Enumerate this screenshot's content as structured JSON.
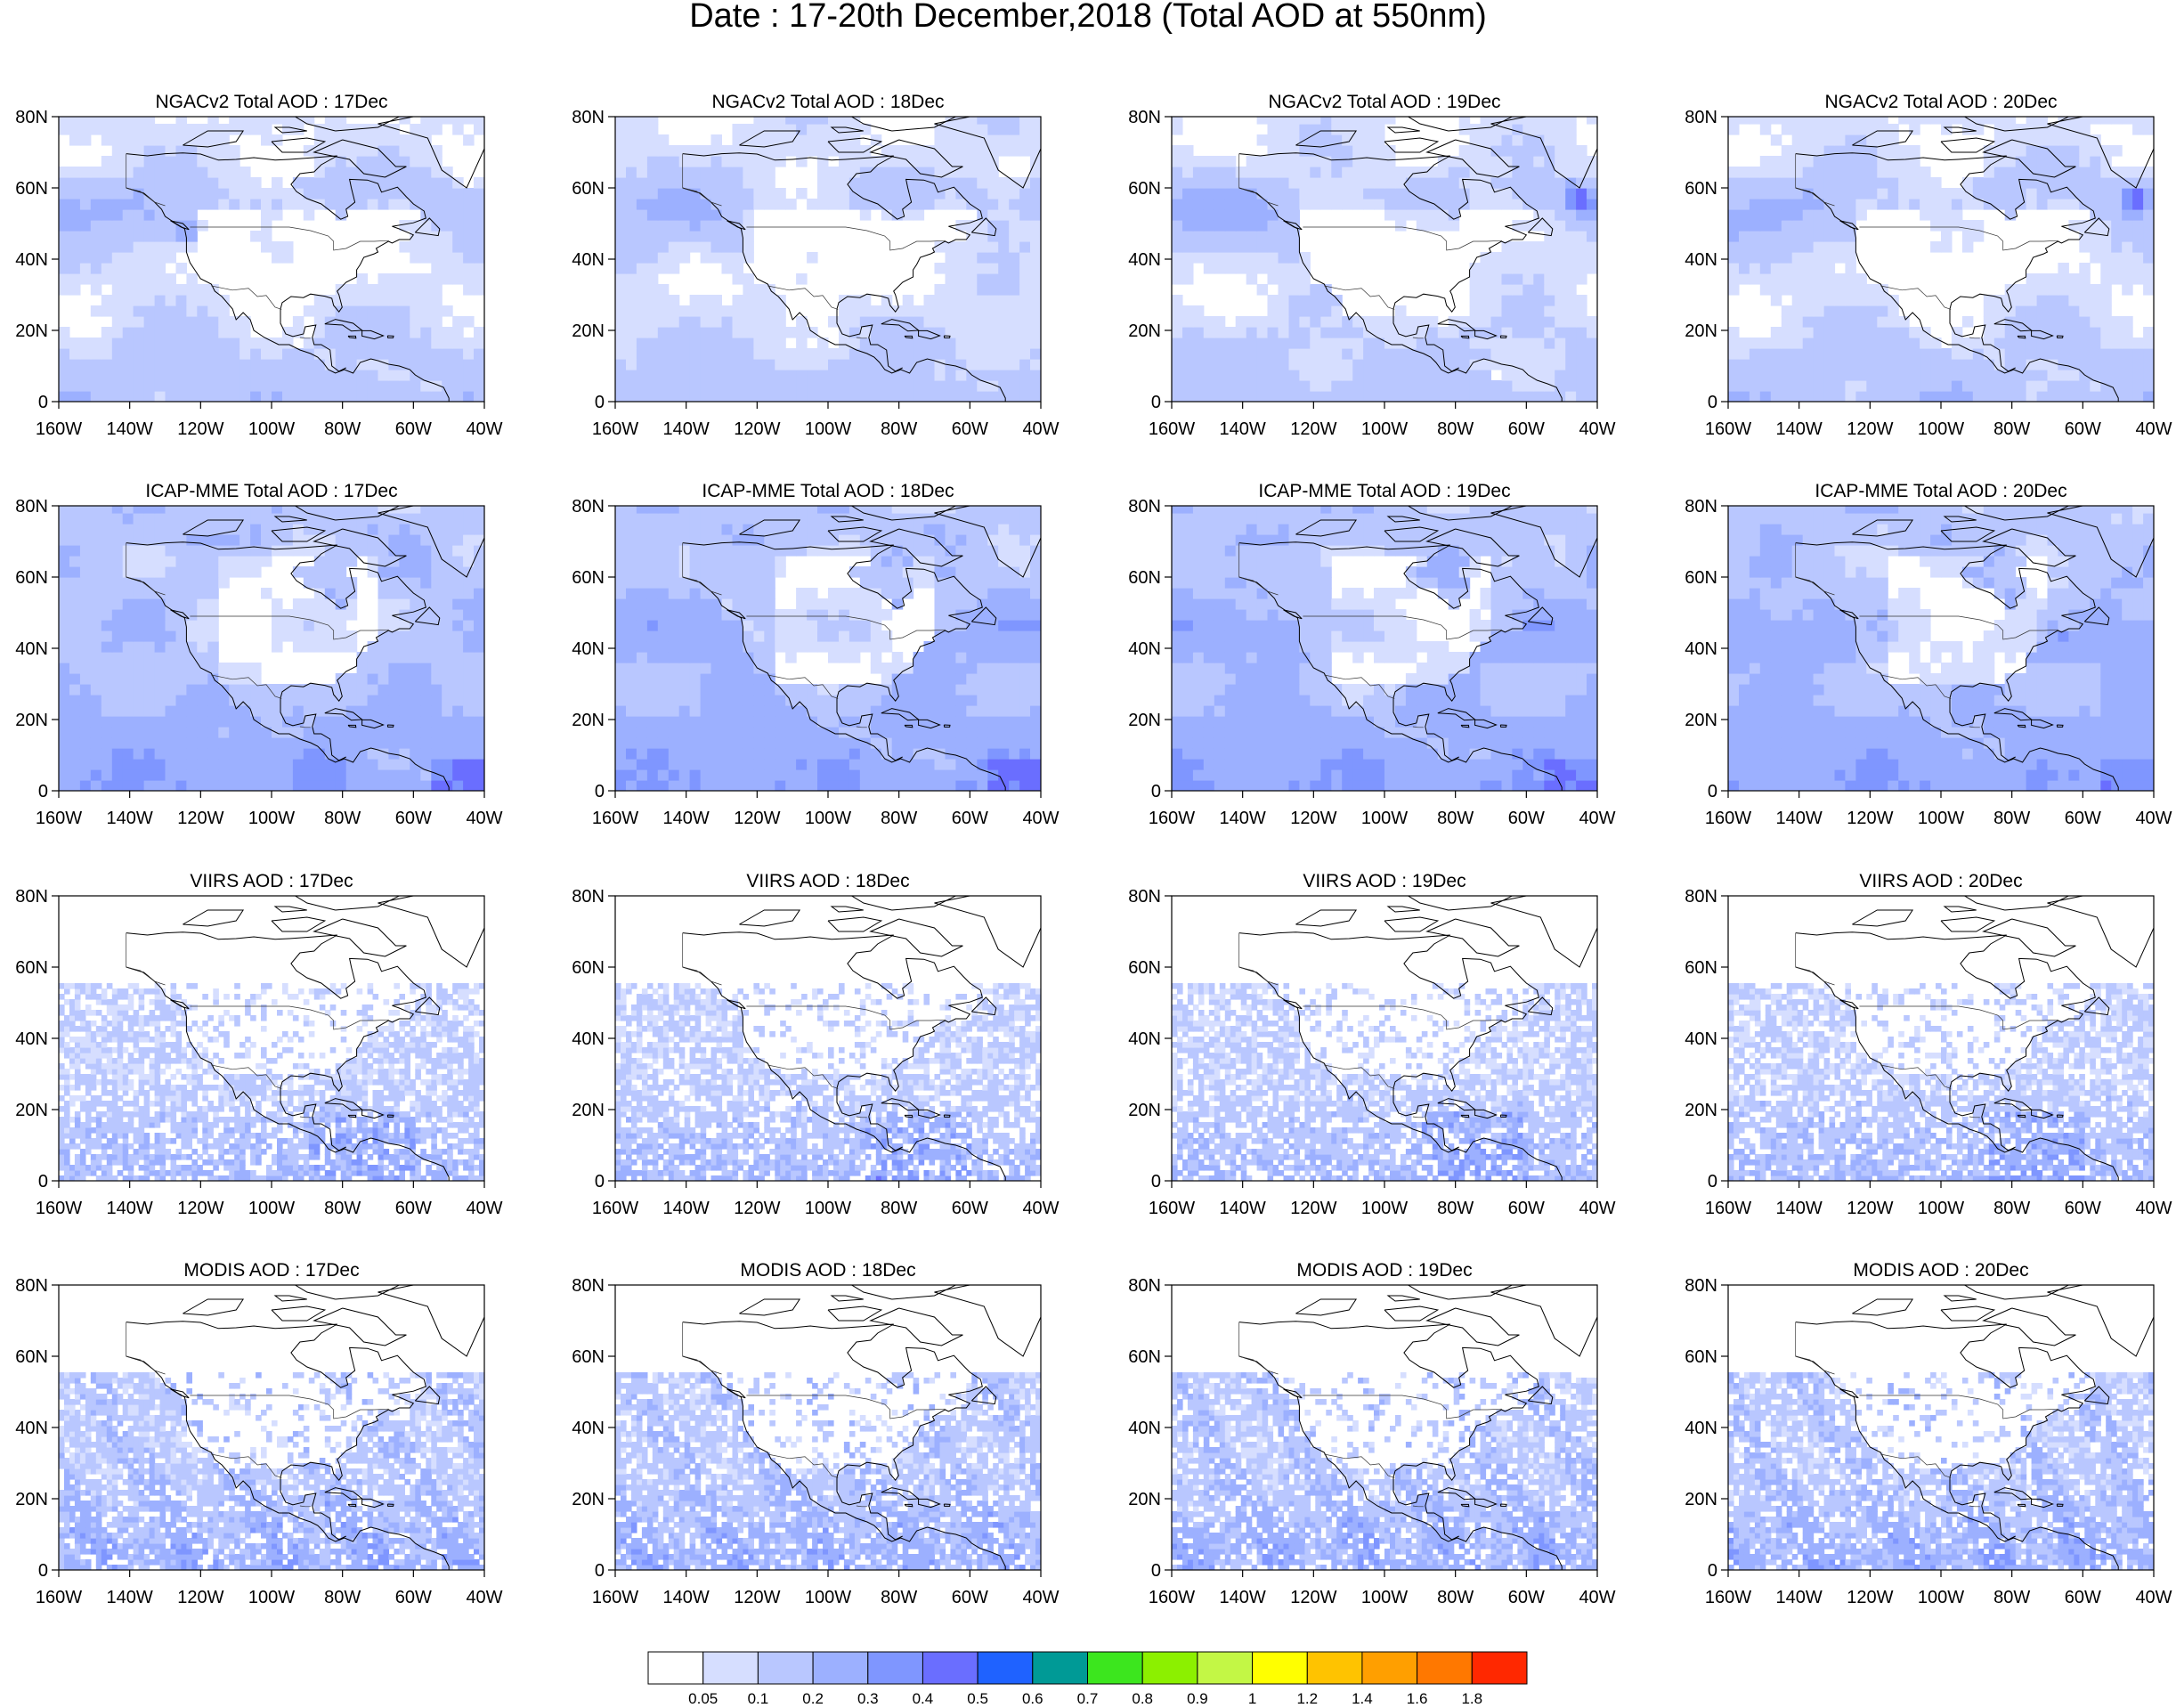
{
  "title": "Date : 17-20th December,2018 (Total AOD at 550nm)",
  "rows": [
    {
      "model": "NGACv2",
      "titles": [
        "NGACv2 Total AOD : 17Dec",
        "NGACv2 Total AOD : 18Dec",
        "NGACv2 Total AOD : 19Dec",
        "NGACv2 Total AOD : 20Dec"
      ]
    },
    {
      "model": "ICAP-MME",
      "titles": [
        "ICAP-MME Total AOD : 17Dec",
        "ICAP-MME Total AOD : 18Dec",
        "ICAP-MME Total AOD : 19Dec",
        "ICAP-MME Total AOD : 20Dec"
      ]
    },
    {
      "model": "VIIRS",
      "titles": [
        "VIIRS AOD : 17Dec",
        "VIIRS AOD : 18Dec",
        "VIIRS AOD : 19Dec",
        "VIIRS AOD : 20Dec"
      ]
    },
    {
      "model": "MODIS",
      "titles": [
        "MODIS AOD : 17Dec",
        "MODIS AOD : 18Dec",
        "MODIS AOD : 19Dec",
        "MODIS AOD : 20Dec"
      ]
    }
  ],
  "axes": {
    "lat_ticks": [
      "80N",
      "60N",
      "40N",
      "20N",
      "0"
    ],
    "lon_ticks": [
      "160W",
      "140W",
      "120W",
      "100W",
      "80W",
      "60W",
      "40W"
    ],
    "lat_range": [
      0,
      80
    ],
    "lon_range": [
      -160,
      -40
    ]
  },
  "colorbar": {
    "labels": [
      "0.05",
      "0.1",
      "0.2",
      "0.3",
      "0.4",
      "0.5",
      "0.6",
      "0.7",
      "0.8",
      "0.9",
      "1",
      "1.2",
      "1.4",
      "1.6",
      "1.8"
    ],
    "colors": [
      "#ffffff",
      "#d6deff",
      "#b9c7ff",
      "#9cb0ff",
      "#7f96ff",
      "#6a6eff",
      "#1f62ff",
      "#009a96",
      "#3ce61e",
      "#8cf000",
      "#c3f745",
      "#ffff00",
      "#ffc300",
      "#ff9f00",
      "#ff7800",
      "#ff2800"
    ]
  }
}
